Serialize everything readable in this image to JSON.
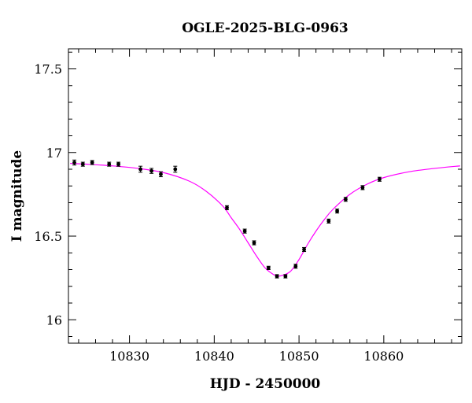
{
  "chart_data": {
    "type": "scatter",
    "title": "OGLE-2025-BLG-0963",
    "xlabel": "HJD - 2450000",
    "ylabel": "I magnitude",
    "xlim": [
      10822.8,
      10869.2
    ],
    "ylim": [
      17.62,
      15.86
    ],
    "y_inverted": true,
    "x_ticks_major": [
      10830,
      10840,
      10850,
      10860
    ],
    "x_tick_labels": [
      "10830",
      "10840",
      "10850",
      "10860"
    ],
    "x_ticks_minor_step": 2,
    "y_ticks_major": [
      16,
      16.5,
      17,
      17.5
    ],
    "y_tick_labels": [
      "16",
      "16.5",
      "17",
      "17.5"
    ],
    "y_ticks_minor_step": 0.1,
    "grid": false,
    "legend": "none",
    "colors": {
      "points": "#000000",
      "model": "#ff00ff",
      "axes": "#000000"
    },
    "series": [
      {
        "kind": "points",
        "x": [
          10823.5,
          10824.5,
          10825.6,
          10827.6,
          10828.7,
          10831.3,
          10832.6,
          10833.7,
          10835.4,
          10841.5,
          10843.6,
          10844.7,
          10846.4,
          10847.4,
          10848.4,
          10849.6,
          10850.6,
          10853.5,
          10854.5,
          10855.5,
          10857.5,
          10859.5
        ],
        "y": [
          16.94,
          16.93,
          16.94,
          16.93,
          16.93,
          16.9,
          16.89,
          16.87,
          16.9,
          16.67,
          16.53,
          16.46,
          16.31,
          16.26,
          16.26,
          16.32,
          16.42,
          16.59,
          16.65,
          16.72,
          16.79,
          16.84
        ],
        "yerr": [
          0.015,
          0.012,
          0.012,
          0.012,
          0.012,
          0.018,
          0.015,
          0.015,
          0.018,
          0.012,
          0.012,
          0.012,
          0.01,
          0.01,
          0.01,
          0.012,
          0.012,
          0.012,
          0.012,
          0.012,
          0.012,
          0.012
        ]
      },
      {
        "kind": "model",
        "x": [
          10823,
          10825,
          10828,
          10831,
          10834,
          10837,
          10839,
          10841,
          10842,
          10843,
          10844,
          10845,
          10846,
          10847,
          10847.5,
          10848,
          10849,
          10850,
          10851,
          10852,
          10853,
          10854,
          10856,
          10858,
          10860,
          10863,
          10866,
          10869
        ],
        "y": [
          16.935,
          16.93,
          16.92,
          16.905,
          16.88,
          16.83,
          16.77,
          16.68,
          16.61,
          16.54,
          16.46,
          16.38,
          16.31,
          16.27,
          16.262,
          16.265,
          16.29,
          16.36,
          16.45,
          16.53,
          16.6,
          16.66,
          16.75,
          16.81,
          16.85,
          16.885,
          16.905,
          16.92
        ]
      }
    ]
  }
}
